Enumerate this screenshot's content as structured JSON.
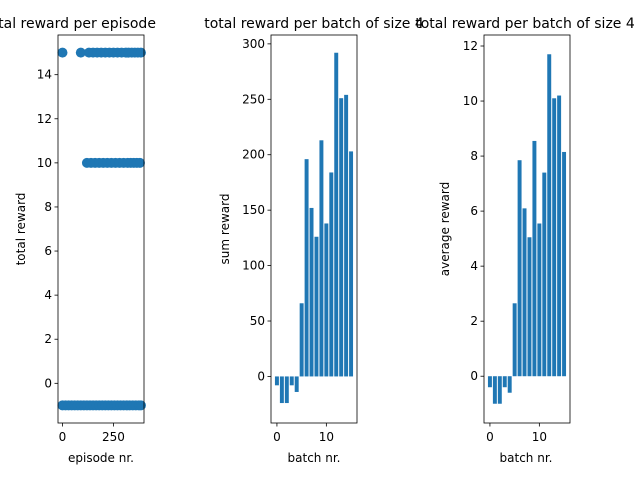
{
  "chart_data": [
    {
      "type": "scatter",
      "title": "total reward per episode",
      "xlabel": "episode nr.",
      "ylabel": "total reward",
      "xlim": [
        -22,
        400
      ],
      "ylim": [
        -1.8,
        15.8
      ],
      "xticks": [
        0,
        250
      ],
      "yticks": [
        0,
        2,
        4,
        6,
        8,
        10,
        12,
        14
      ],
      "color": "#1f77b4",
      "series": [
        {
          "points": [
            [
              0,
              15
            ],
            [
              90,
              15
            ],
            [
              130,
              15
            ],
            [
              150,
              15
            ],
            [
              170,
              15
            ],
            [
              190,
              15
            ],
            [
              210,
              15
            ],
            [
              230,
              15
            ],
            [
              250,
              15
            ],
            [
              270,
              15
            ],
            [
              290,
              15
            ],
            [
              310,
              15
            ],
            [
              325,
              15
            ],
            [
              340,
              15
            ],
            [
              355,
              15
            ],
            [
              370,
              15
            ],
            [
              385,
              15
            ],
            [
              120,
              10
            ],
            [
              140,
              10
            ],
            [
              160,
              10
            ],
            [
              180,
              10
            ],
            [
              200,
              10
            ],
            [
              220,
              10
            ],
            [
              240,
              10
            ],
            [
              260,
              10
            ],
            [
              280,
              10
            ],
            [
              300,
              10
            ],
            [
              320,
              10
            ],
            [
              335,
              10
            ],
            [
              350,
              10
            ],
            [
              365,
              10
            ],
            [
              380,
              10
            ],
            [
              0,
              -1
            ],
            [
              15,
              -1
            ],
            [
              30,
              -1
            ],
            [
              45,
              -1
            ],
            [
              60,
              -1
            ],
            [
              75,
              -1
            ],
            [
              90,
              -1
            ],
            [
              105,
              -1
            ],
            [
              120,
              -1
            ],
            [
              135,
              -1
            ],
            [
              150,
              -1
            ],
            [
              165,
              -1
            ],
            [
              180,
              -1
            ],
            [
              195,
              -1
            ],
            [
              210,
              -1
            ],
            [
              225,
              -1
            ],
            [
              240,
              -1
            ],
            [
              255,
              -1
            ],
            [
              270,
              -1
            ],
            [
              285,
              -1
            ],
            [
              300,
              -1
            ],
            [
              315,
              -1
            ],
            [
              330,
              -1
            ],
            [
              345,
              -1
            ],
            [
              360,
              -1
            ],
            [
              375,
              -1
            ],
            [
              385,
              -1
            ]
          ]
        }
      ]
    },
    {
      "type": "bar",
      "title": "total reward per batch of size 4",
      "xlabel": "batch nr.",
      "ylabel": "sum reward",
      "xlim": [
        -1.2,
        16.2
      ],
      "ylim": [
        -42,
        308
      ],
      "xticks": [
        0,
        10
      ],
      "yticks": [
        0,
        50,
        100,
        150,
        200,
        250,
        300
      ],
      "color": "#1f77b4",
      "categories": [
        0,
        1,
        2,
        3,
        4,
        5,
        6,
        7,
        8,
        9,
        10,
        11,
        12,
        13,
        14,
        15
      ],
      "values": [
        -8,
        -24,
        -24,
        -8,
        -14,
        66,
        196,
        152,
        126,
        213,
        138,
        184,
        292,
        251,
        254,
        203
      ]
    },
    {
      "type": "bar",
      "title": "total reward per batch of size 4",
      "xlabel": "batch nr.",
      "ylabel": "average reward",
      "xlim": [
        -1.2,
        16.2
      ],
      "ylim": [
        -1.7,
        12.4
      ],
      "xticks": [
        0,
        10
      ],
      "yticks": [
        0,
        2,
        4,
        6,
        8,
        10,
        12
      ],
      "color": "#1f77b4",
      "categories": [
        0,
        1,
        2,
        3,
        4,
        5,
        6,
        7,
        8,
        9,
        10,
        11,
        12,
        13,
        14,
        15
      ],
      "values": [
        -0.4,
        -1,
        -1,
        -0.4,
        -0.6,
        2.65,
        7.85,
        6.1,
        5.05,
        8.55,
        5.55,
        7.4,
        11.7,
        10.1,
        10.2,
        8.15
      ]
    }
  ]
}
